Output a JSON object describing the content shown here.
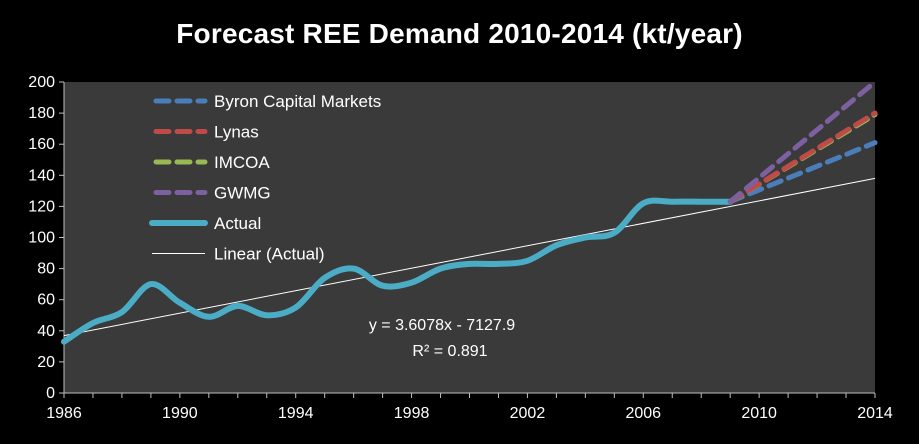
{
  "chart_data": {
    "type": "line",
    "title": "Forecast REE Demand 2010-2014 (kt/year)",
    "xlabel": "",
    "ylabel": "",
    "xlim": [
      1986,
      2014
    ],
    "ylim": [
      0,
      200
    ],
    "x_ticks": [
      "1986",
      "1990",
      "1994",
      "1998",
      "2002",
      "2006",
      "2010",
      "2014"
    ],
    "y_ticks": [
      "0",
      "20",
      "40",
      "60",
      "80",
      "100",
      "120",
      "140",
      "160",
      "180",
      "200"
    ],
    "grid": false,
    "legend_position": "top-left",
    "colors": {
      "background": "#000000",
      "plot_area": "#3a3a3a",
      "byron": "#4a7ebb",
      "lynas": "#be4b48",
      "imcoa": "#98b954",
      "gwmg": "#7d60a0",
      "actual": "#4bacc6",
      "trend": "#ffffff"
    },
    "series": [
      {
        "name": "Byron Capital Markets",
        "style": "dashed",
        "x": [
          2009,
          2014
        ],
        "y": [
          123,
          161
        ]
      },
      {
        "name": "Lynas",
        "style": "dashed",
        "x": [
          2009,
          2014
        ],
        "y": [
          123,
          180
        ]
      },
      {
        "name": "IMCOA",
        "style": "dashed",
        "x": [
          2009,
          2014
        ],
        "y": [
          123,
          179
        ]
      },
      {
        "name": "GWMG",
        "style": "dashed",
        "x": [
          2009,
          2014
        ],
        "y": [
          123,
          200
        ]
      },
      {
        "name": "Actual",
        "style": "solid",
        "x": [
          1986,
          1987,
          1988,
          1989,
          1990,
          1991,
          1992,
          1993,
          1994,
          1995,
          1996,
          1997,
          1998,
          1999,
          2000,
          2001,
          2002,
          2003,
          2004,
          2005,
          2006,
          2007,
          2008,
          2009
        ],
        "y": [
          33,
          45,
          52,
          70,
          58,
          49,
          56,
          50,
          55,
          74,
          80,
          69,
          71,
          80,
          83,
          83,
          85,
          95,
          100,
          103,
          122,
          123,
          123,
          123
        ]
      },
      {
        "name": "Linear (Actual)",
        "style": "thin",
        "x": [
          1986,
          2014
        ],
        "y": [
          36.9,
          138.0
        ]
      }
    ],
    "annotations": [
      {
        "text": "y = 3.6078x - 7127.9"
      },
      {
        "text": "R² = 0.891"
      }
    ]
  }
}
